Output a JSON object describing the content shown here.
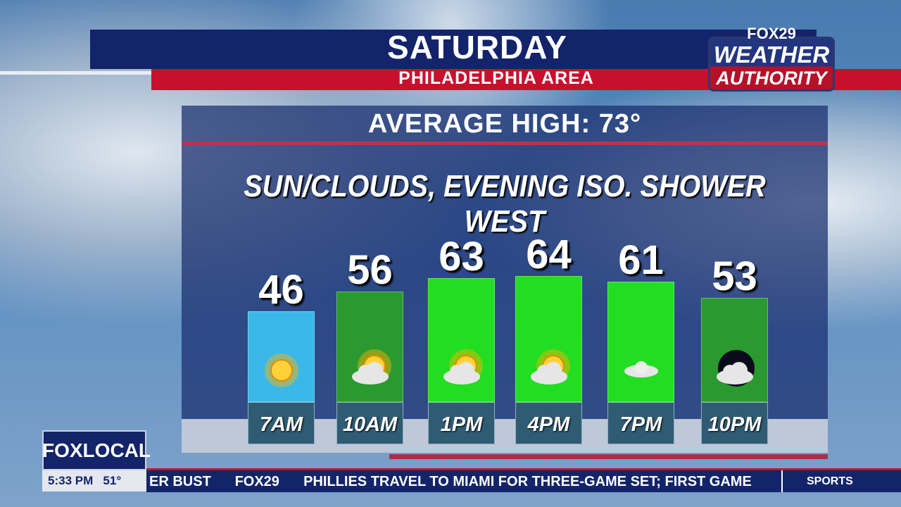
{
  "header": {
    "title": "SATURDAY",
    "subtitle": "PHILADELPHIA AREA"
  },
  "logo": {
    "line1": "FOX29",
    "line2": "WEATHER",
    "line3": "AUTHORITY"
  },
  "panel": {
    "average_high": "AVERAGE HIGH: 73°",
    "conditions": "SUN/CLOUDS, EVENING ISO. SHOWER WEST"
  },
  "chart_data": {
    "type": "bar",
    "categories": [
      "7AM",
      "10AM",
      "1PM",
      "4PM",
      "7PM",
      "10PM"
    ],
    "values": [
      46,
      56,
      63,
      64,
      61,
      53
    ],
    "value_labels": [
      "46",
      "56",
      "63",
      "64",
      "61",
      "53"
    ],
    "icons": [
      "sunny-icon",
      "partly-cloudy-icon",
      "partly-cloudy-icon",
      "partly-cloudy-icon",
      "cloudy-icon",
      "night-cloudy-icon"
    ],
    "bar_colors": [
      "#3cb8e8",
      "#2a9a30",
      "#22dd22",
      "#22dd22",
      "#22dd22",
      "#2a9a30"
    ],
    "ylim": [
      0,
      70
    ]
  },
  "bug": {
    "brand": "FOXLOCAL",
    "time": "5:33 PM",
    "temp": "51°"
  },
  "ticker": {
    "prev": "ER BUST",
    "brand": "FOX29",
    "headline": "PHILLIES TRAVEL TO MIAMI FOR THREE-GAME SET; FIRST GAME",
    "section": "SPORTS"
  }
}
